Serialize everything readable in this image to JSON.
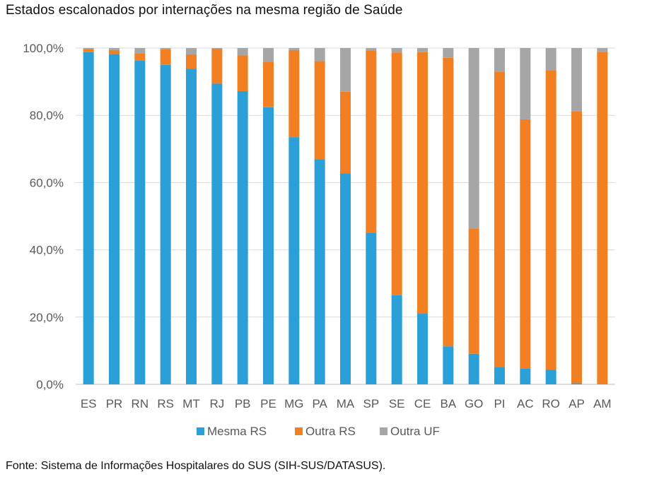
{
  "title": "Estados escalonados por internações na mesma região de Saúde",
  "source": "Fonte: Sistema de Informações Hospitalares do SUS (SIH-SUS/DATASUS).",
  "chart_data": {
    "type": "bar",
    "stacked": true,
    "categories": [
      "ES",
      "PR",
      "RN",
      "RS",
      "MT",
      "RJ",
      "PB",
      "PE",
      "MG",
      "PA",
      "MA",
      "SP",
      "SE",
      "CE",
      "BA",
      "GO",
      "PI",
      "AC",
      "RO",
      "AP",
      "AM"
    ],
    "series": [
      {
        "name": "Mesma RS",
        "color": "#2a9fd8",
        "values": [
          98.8,
          98.2,
          96.3,
          95.0,
          93.8,
          89.4,
          87.2,
          82.4,
          73.5,
          66.9,
          62.7,
          45.1,
          26.5,
          21.0,
          11.3,
          9.1,
          5.2,
          4.7,
          4.3,
          0.3,
          0.0
        ]
      },
      {
        "name": "Outra RS",
        "color": "#f28022",
        "values": [
          0.9,
          1.2,
          2.1,
          4.6,
          4.3,
          10.4,
          10.6,
          13.4,
          25.9,
          29.2,
          24.3,
          54.2,
          72.2,
          77.8,
          85.8,
          37.3,
          87.8,
          74.1,
          89.1,
          80.8,
          98.9
        ]
      },
      {
        "name": "Outra UF",
        "color": "#a6a6a6",
        "values": [
          0.3,
          0.6,
          1.6,
          0.4,
          1.9,
          0.2,
          2.2,
          4.2,
          0.6,
          3.9,
          13.0,
          0.7,
          1.3,
          1.2,
          2.9,
          53.6,
          7.0,
          21.2,
          6.6,
          18.9,
          1.1
        ]
      }
    ],
    "yticks": [
      "0,0%",
      "20,0%",
      "40,0%",
      "60,0%",
      "80,0%",
      "100,0%"
    ],
    "ylim": [
      0,
      100
    ],
    "grid": true,
    "legend_position": "bottom"
  }
}
